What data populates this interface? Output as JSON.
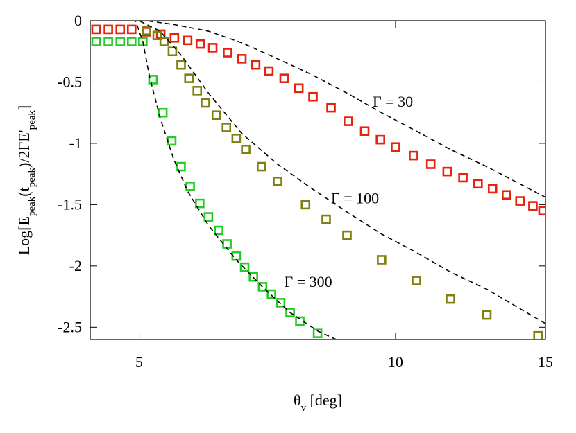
{
  "chart_data": {
    "type": "scatter",
    "log_x": true,
    "x_label": [
      {
        "text": "θ"
      },
      {
        "text": "v",
        "sub": true
      },
      {
        "text": " [deg]"
      }
    ],
    "y_label": [
      {
        "text": "Log[E"
      },
      {
        "text": "peak",
        "sub": true
      },
      {
        "text": "(t"
      },
      {
        "text": "peak",
        "sub": true
      },
      {
        "text": ")/2ΓE'"
      },
      {
        "text": "peak",
        "sub": true
      },
      {
        "text": "]"
      }
    ],
    "xlim": [
      4.38,
      15
    ],
    "ylim": [
      -2.6,
      0
    ],
    "xticks": [
      5,
      10,
      15
    ],
    "yticks": [
      0,
      -0.5,
      -1,
      -1.5,
      -2,
      -2.5
    ],
    "annotations": [
      {
        "text": "Γ = 30",
        "x": 9.4,
        "y": -0.7
      },
      {
        "text": "Γ = 100",
        "x": 8.4,
        "y": -1.49
      },
      {
        "text": "Γ = 300",
        "x": 7.4,
        "y": -2.17
      }
    ],
    "series": [
      {
        "color": "#e8200c",
        "marker": "square",
        "x": [
          4.45,
          4.6,
          4.75,
          4.9,
          5.1,
          5.3,
          5.5,
          5.7,
          5.9,
          6.1,
          6.35,
          6.6,
          6.85,
          7.1,
          7.4,
          7.7,
          8.0,
          8.4,
          8.8,
          9.2,
          9.6,
          10.0,
          10.5,
          11.0,
          11.5,
          12.0,
          12.5,
          13.0,
          13.5,
          14.0,
          14.5,
          14.9
        ],
        "values": [
          -0.07,
          -0.07,
          -0.07,
          -0.07,
          -0.09,
          -0.11,
          -0.14,
          -0.16,
          -0.19,
          -0.22,
          -0.26,
          -0.31,
          -0.36,
          -0.41,
          -0.47,
          -0.55,
          -0.62,
          -0.71,
          -0.82,
          -0.9,
          -0.97,
          -1.03,
          -1.1,
          -1.17,
          -1.23,
          -1.28,
          -1.33,
          -1.37,
          -1.42,
          -1.47,
          -1.51,
          -1.55
        ]
      },
      {
        "color": "#808010",
        "marker": "square",
        "x": [
          5.1,
          5.25,
          5.35,
          5.47,
          5.6,
          5.72,
          5.85,
          5.98,
          6.16,
          6.33,
          6.5,
          6.67,
          6.96,
          7.27,
          7.84,
          8.29,
          8.77,
          9.63,
          10.58,
          11.6,
          12.8,
          14.7
        ],
        "values": [
          -0.08,
          -0.12,
          -0.17,
          -0.25,
          -0.36,
          -0.47,
          -0.57,
          -0.67,
          -0.77,
          -0.87,
          -0.96,
          -1.05,
          -1.19,
          -1.31,
          -1.5,
          -1.62,
          -1.75,
          -1.95,
          -2.12,
          -2.27,
          -2.4,
          -2.57
        ]
      },
      {
        "color": "#22cc22",
        "marker": "square",
        "x": [
          4.45,
          4.6,
          4.75,
          4.9,
          5.05,
          5.19,
          5.33,
          5.46,
          5.6,
          5.74,
          5.89,
          6.03,
          6.2,
          6.34,
          6.5,
          6.65,
          6.81,
          6.98,
          7.15,
          7.33,
          7.52,
          7.72,
          8.1
        ],
        "values": [
          -0.17,
          -0.17,
          -0.17,
          -0.17,
          -0.17,
          -0.48,
          -0.75,
          -0.98,
          -1.19,
          -1.35,
          -1.49,
          -1.6,
          -1.71,
          -1.82,
          -1.92,
          -2.01,
          -2.09,
          -2.17,
          -2.23,
          -2.3,
          -2.38,
          -2.45,
          -2.55
        ]
      },
      {
        "color": "#000000",
        "style": "dashed",
        "x": [
          4.38,
          5.1,
          5.49,
          6.03,
          6.6,
          7.27,
          7.98,
          8.77,
          9.63,
          10.58,
          11.6,
          12.8,
          15
        ],
        "values": [
          0,
          0,
          -0.03,
          -0.085,
          -0.18,
          -0.31,
          -0.44,
          -0.59,
          -0.75,
          -0.9,
          -1.05,
          -1.19,
          -1.44
        ]
      },
      {
        "color": "#000000",
        "style": "dashed",
        "x": [
          4.38,
          5.0,
          5.29,
          5.6,
          6.03,
          6.6,
          7.27,
          7.98,
          8.77,
          9.63,
          10.58,
          11.6,
          12.8,
          15
        ],
        "values": [
          0,
          0,
          -0.085,
          -0.28,
          -0.59,
          -0.92,
          -1.17,
          -1.37,
          -1.56,
          -1.74,
          -1.89,
          -2.05,
          -2.19,
          -2.47
        ]
      },
      {
        "color": "#000000",
        "style": "dashed",
        "x": [
          4.38,
          4.95,
          5.05,
          5.14,
          5.29,
          5.49,
          5.7,
          6.03,
          6.5,
          7.0,
          7.52,
          8.1,
          8.52
        ],
        "values": [
          0,
          0,
          -0.17,
          -0.45,
          -0.79,
          -1.13,
          -1.39,
          -1.67,
          -1.95,
          -2.18,
          -2.38,
          -2.53,
          -2.6
        ]
      }
    ]
  }
}
